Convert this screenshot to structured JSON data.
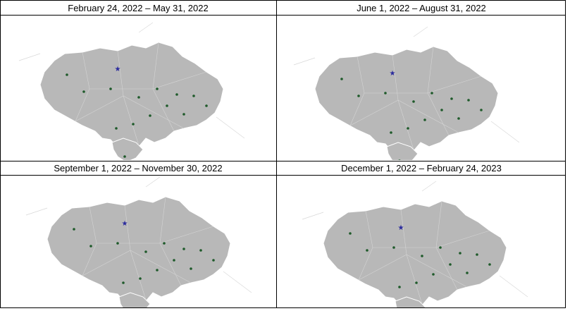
{
  "panels": [
    {
      "title": "February 24, 2022 – May 31, 2022"
    },
    {
      "title": "June 1, 2022 – August 31, 2022"
    },
    {
      "title": "September 1, 2022 – November 30, 2022"
    },
    {
      "title": "December 1, 2022 – February 24, 2023"
    }
  ],
  "colors": {
    "land": "#b8b8b8",
    "border": "#ffffff",
    "heat_low": "#fdf0b0",
    "heat_mid": "#f9a35a",
    "heat_high": "#e2456a",
    "heat_peak": "#3b1268",
    "city_marker": "#1e5a2a",
    "capital_marker": "#2a2a9e"
  }
}
